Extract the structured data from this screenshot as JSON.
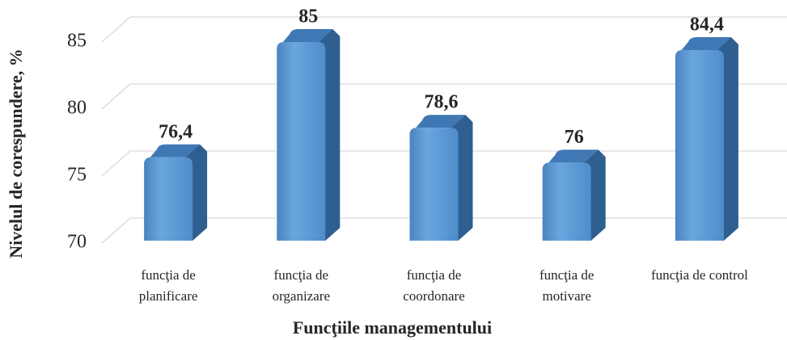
{
  "chart_data": {
    "type": "bar3d",
    "categories": [
      "funcţia de planificare",
      "funcţia de organizare",
      "funcţia de coordonare",
      "funcţia de motivare",
      "funcţia de control"
    ],
    "values": [
      76.4,
      85,
      78.6,
      76,
      84.4
    ],
    "value_labels": [
      "76,4",
      "85",
      "78,6",
      "76",
      "84,4"
    ],
    "color": "#5b9bd5",
    "ylim": [
      70,
      90
    ],
    "yticks": [
      70,
      75,
      80,
      85
    ],
    "grid": true,
    "xlabel": "Funcţiile managementului",
    "ylabel": "Nivelul de corespundere, %"
  }
}
